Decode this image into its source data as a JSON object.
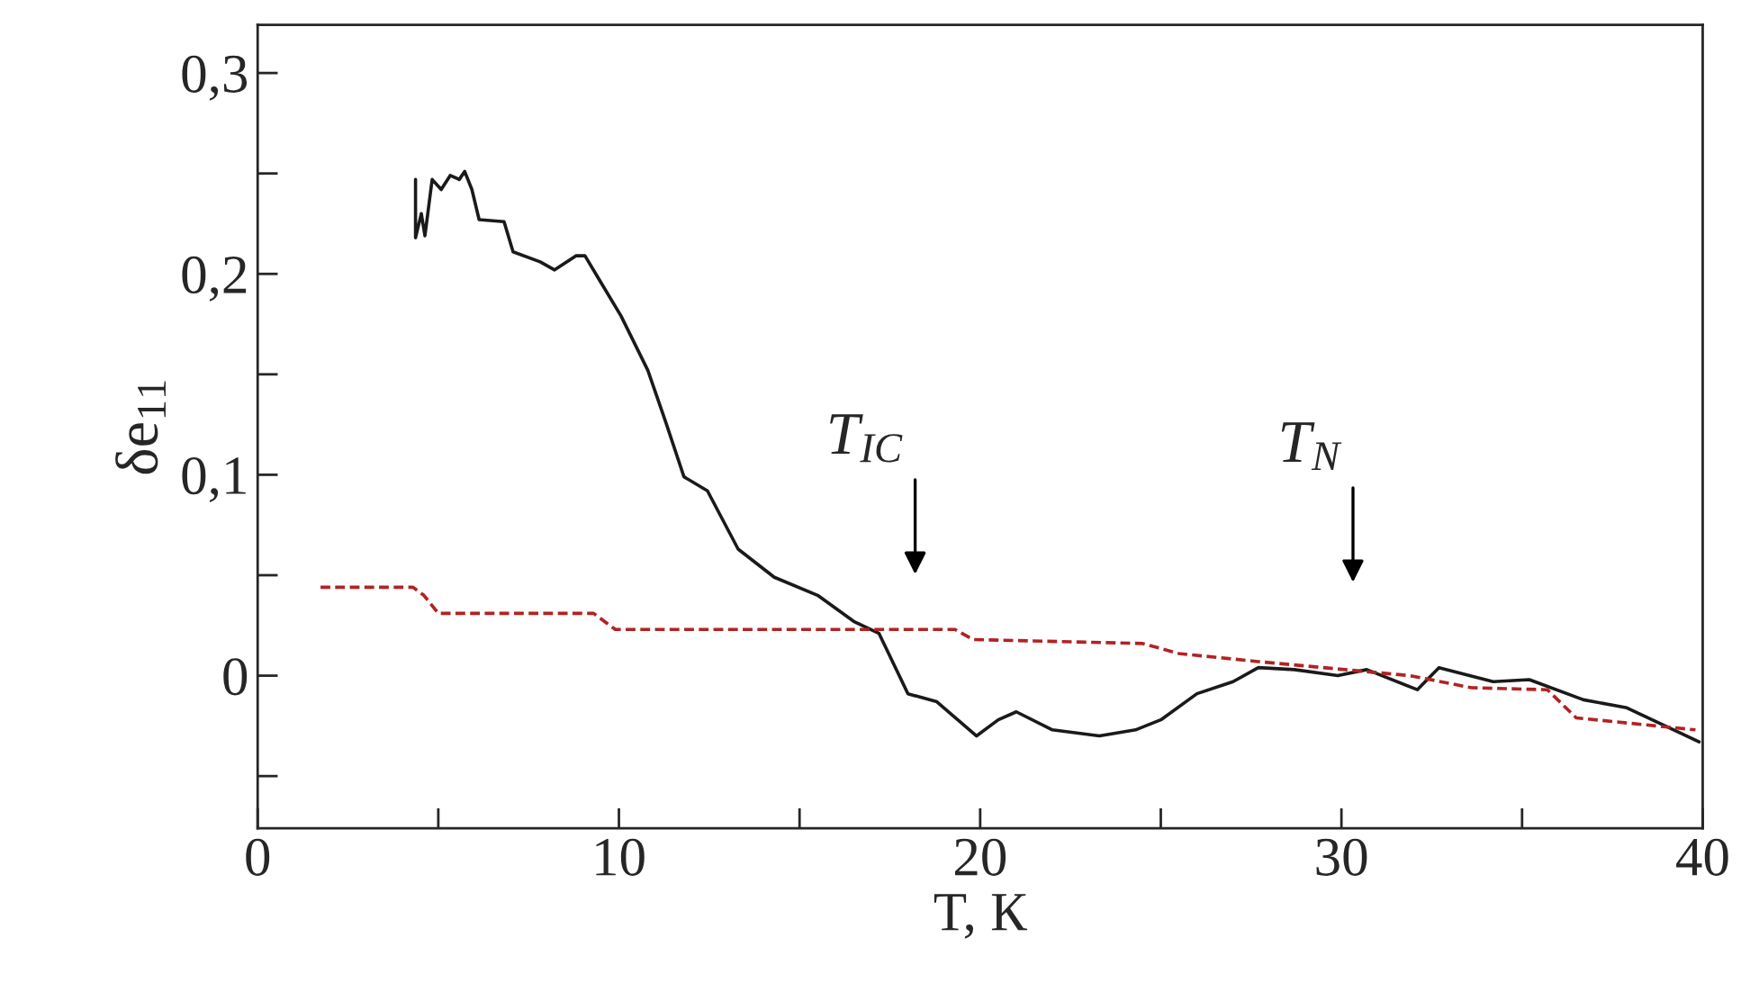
{
  "chart_data": {
    "type": "line",
    "xlabel": "T, К",
    "ylabel": "δe$_{11}$",
    "xlim": [
      0,
      40
    ],
    "ylim": [
      -0.076,
      0.324
    ],
    "xticks": [
      0,
      {
        "value": 5,
        "label": null
      },
      10,
      {
        "value": 15,
        "label": null
      },
      20,
      {
        "value": 25,
        "label": null
      },
      30,
      {
        "value": 35,
        "label": null
      },
      40
    ],
    "yticks": [
      {
        "value": -0.05,
        "label": null
      },
      {
        "value": 0,
        "label": "0"
      },
      {
        "value": 0.05,
        "label": null
      },
      {
        "value": 0.1,
        "label": "0,1"
      },
      {
        "value": 0.15,
        "label": null
      },
      {
        "value": 0.2,
        "label": "0,2"
      },
      {
        "value": 0.25,
        "label": null
      },
      {
        "value": 0.3,
        "label": "0,3"
      }
    ],
    "grid": false,
    "legend": false,
    "marker": "none",
    "series": [
      {
        "color": "#1a1a1a",
        "line_style": "solid",
        "x": [
          4.37,
          4.37,
          4.53,
          4.63,
          4.83,
          5.08,
          5.33,
          5.58,
          5.73,
          5.93,
          6.13,
          6.82,
          7.07,
          7.82,
          8.22,
          8.81,
          9.06,
          9.46,
          10.06,
          10.8,
          11.3,
          11.8,
          12.45,
          13.3,
          14.3,
          15.5,
          16.5,
          17.2,
          18.0,
          18.8,
          19.9,
          20.5,
          21.0,
          22.0,
          23.3,
          24.3,
          25.0,
          26.0,
          27.0,
          27.7,
          28.7,
          29.9,
          30.7,
          32.1,
          32.7,
          34.2,
          35.2,
          36.7,
          37.9,
          39.2,
          39.9
        ],
        "values": [
          0.247,
          0.218,
          0.23,
          0.219,
          0.247,
          0.242,
          0.249,
          0.247,
          0.251,
          0.242,
          0.227,
          0.226,
          0.211,
          0.206,
          0.202,
          0.209,
          0.209,
          0.197,
          0.179,
          0.152,
          0.126,
          0.099,
          0.092,
          0.063,
          0.049,
          0.04,
          0.027,
          0.021,
          -0.009,
          -0.013,
          -0.03,
          -0.022,
          -0.018,
          -0.027,
          -0.03,
          -0.027,
          -0.022,
          -0.009,
          -0.003,
          0.004,
          0.003,
          0.0,
          0.003,
          -0.007,
          0.004,
          -0.003,
          -0.002,
          -0.012,
          -0.016,
          -0.027,
          -0.033
        ]
      },
      {
        "color": "#b22222",
        "line_style": "dashed",
        "x": [
          1.74,
          4.3,
          4.6,
          5.0,
          9.3,
          9.9,
          19.3,
          19.8,
          24.5,
          25.5,
          27.7,
          31.9,
          33.6,
          35.7,
          36.5,
          39.8
        ],
        "values": [
          0.044,
          0.044,
          0.04,
          0.031,
          0.031,
          0.023,
          0.023,
          0.018,
          0.016,
          0.011,
          0.007,
          0.0,
          -0.006,
          -0.007,
          -0.021,
          -0.027
        ]
      }
    ],
    "annotations": [
      "T$_{IC}$",
      "T$_{N}$"
    ]
  }
}
